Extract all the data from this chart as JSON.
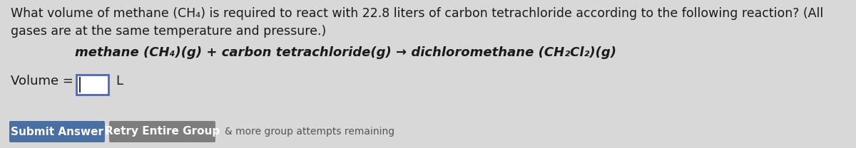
{
  "background_color": "#d8d8d8",
  "question_line1": "What volume of methane (CH₄) is required to react with 22.8 liters of carbon tetrachloride according to the following reaction? (All",
  "question_line2": "gases are at the same temperature and pressure.)",
  "reaction_plain": "methane (CH₄)(g) + carbon tetrachloride(g) → dichloromethane (CH₂Cl₂)(g)",
  "volume_label": "Volume = ",
  "volume_unit": "L",
  "submit_label": "Submit Answer",
  "retry_label": "Retry Entire Group",
  "more_text": "& more group attempts remaining",
  "submit_color": "#4a6fa5",
  "retry_color": "#7d7d7d",
  "text_color": "#1a1a1a",
  "box_border_color": "#5566aa",
  "font_size_question": 12.5,
  "font_size_reaction": 13,
  "font_size_volume": 13,
  "font_size_button": 11
}
